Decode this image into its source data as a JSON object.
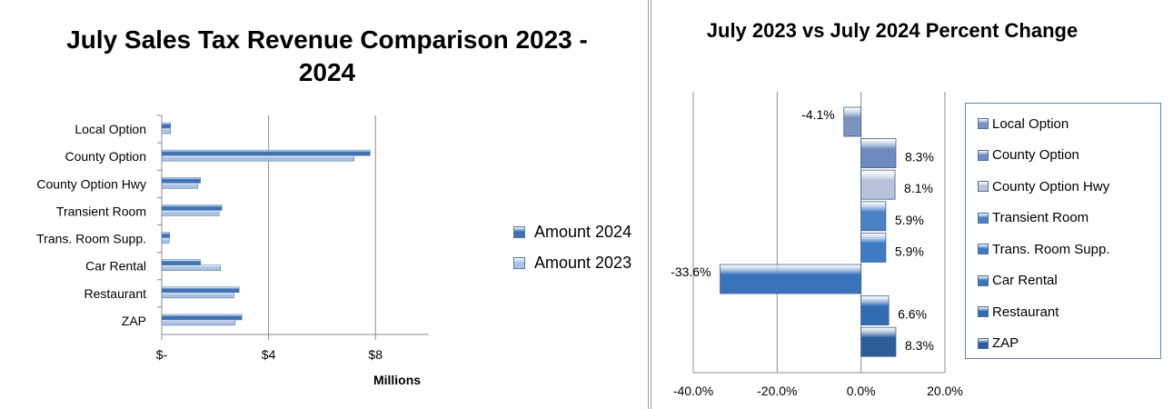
{
  "charts": [
    {
      "title": "July Sales Tax Revenue Comparison 2023 - 2024",
      "x_tick_labels": [
        "$-",
        "$4",
        "$8"
      ],
      "x_axis_unit_label": "Millions",
      "legend": [
        {
          "label": "Amount 2024",
          "color": "#3d72b4"
        },
        {
          "label": "Amount 2023",
          "color": "#a9c2e2"
        }
      ]
    },
    {
      "title": "July 2023 vs July 2024 Percent Change",
      "x_tick_labels": [
        "-40.0%",
        "-20.0%",
        "0.0%",
        "20.0%"
      ],
      "legend": [
        {
          "label": "Local Option",
          "color": "#7b93bf"
        },
        {
          "label": "County Option",
          "color": "#6d8bbf"
        },
        {
          "label": "County Option Hwy",
          "color": "#b8c2d8"
        },
        {
          "label": "Transient Room",
          "color": "#4a80c4"
        },
        {
          "label": "Trans. Room Supp.",
          "color": "#3f7bc4"
        },
        {
          "label": "Car Rental",
          "color": "#3b73bb"
        },
        {
          "label": "Restaurant",
          "color": "#336bb0"
        },
        {
          "label": "ZAP",
          "color": "#2c5c9a"
        }
      ]
    }
  ],
  "chart_data": [
    {
      "type": "bar",
      "orientation": "horizontal",
      "title": "July Sales Tax Revenue Comparison 2023 - 2024",
      "xlabel": "Millions",
      "ylabel": "",
      "xlim": [
        0,
        10
      ],
      "x_ticks": [
        0,
        4,
        8
      ],
      "unit": "USD millions",
      "grid": true,
      "legend_position": "right",
      "categories": [
        "Local Option",
        "County Option",
        "County Option Hwy",
        "Transient Room",
        "Trans. Room Supp.",
        "Car Rental",
        "Restaurant",
        "ZAP"
      ],
      "series": [
        {
          "name": "Amount 2024",
          "values": [
            0.33,
            7.8,
            1.45,
            2.25,
            0.3,
            1.45,
            2.9,
            3.0
          ]
        },
        {
          "name": "Amount 2023",
          "values": [
            0.33,
            7.2,
            1.35,
            2.15,
            0.28,
            2.2,
            2.7,
            2.75
          ]
        }
      ]
    },
    {
      "type": "bar",
      "orientation": "horizontal",
      "title": "July 2023 vs July 2024 Percent Change",
      "xlabel": "",
      "ylabel": "",
      "xlim": [
        -40,
        20
      ],
      "x_ticks": [
        -40,
        -20,
        0,
        20
      ],
      "unit": "percent",
      "grid": true,
      "legend_position": "right",
      "categories": [
        "Local Option",
        "County Option",
        "County Option Hwy",
        "Transient Room",
        "Trans. Room Supp.",
        "Car Rental",
        "Restaurant",
        "ZAP"
      ],
      "values": [
        -4.1,
        8.3,
        8.1,
        5.9,
        5.9,
        -33.6,
        6.6,
        8.3
      ],
      "data_labels": [
        "-4.1%",
        "8.3%",
        "8.1%",
        "5.9%",
        "5.9%",
        "-33.6%",
        "6.6%",
        "8.3%"
      ]
    }
  ]
}
